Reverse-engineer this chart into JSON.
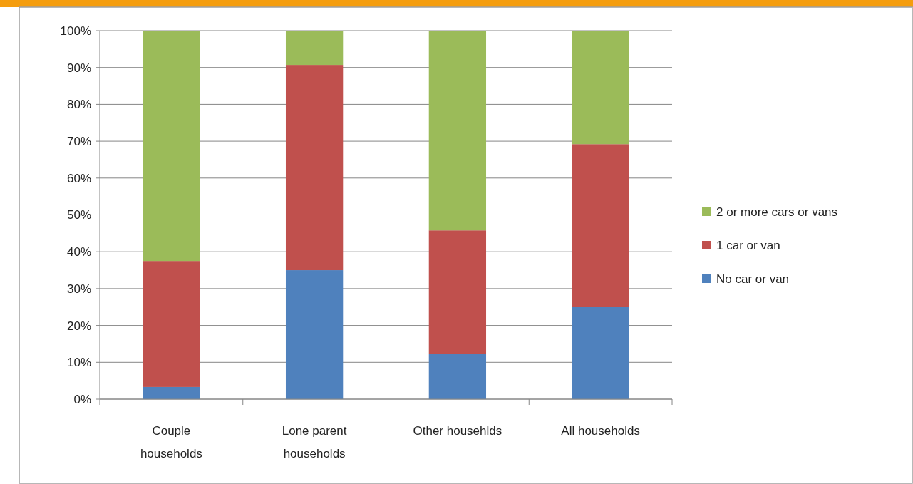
{
  "chart_data": {
    "type": "bar",
    "stacked": true,
    "categories": [
      "Couple households",
      "Lone parent households",
      "Other househlds",
      "All households"
    ],
    "series": [
      {
        "name": "No car or van",
        "color": "#4f81bd",
        "values": [
          3.3,
          35,
          12.2,
          25.1
        ]
      },
      {
        "name": "1 car or van",
        "color": "#c0504d",
        "values": [
          34.2,
          55.7,
          33.6,
          44.1
        ]
      },
      {
        "name": "2 or more cars or vans",
        "color": "#9bbb59",
        "values": [
          62.5,
          9.3,
          54.2,
          30.8
        ]
      }
    ],
    "ylim": [
      0,
      100
    ],
    "yticks": [
      {
        "value": 0,
        "label": "0%"
      },
      {
        "value": 10,
        "label": "10%"
      },
      {
        "value": 20,
        "label": "20%"
      },
      {
        "value": 30,
        "label": "30%"
      },
      {
        "value": 40,
        "label": "40%"
      },
      {
        "value": 50,
        "label": "50%"
      },
      {
        "value": 60,
        "label": "60%"
      },
      {
        "value": 70,
        "label": "70%"
      },
      {
        "value": 80,
        "label": "80%"
      },
      {
        "value": 90,
        "label": "90%"
      },
      {
        "value": 100,
        "label": "100%"
      }
    ],
    "grid": "y",
    "legend": "right"
  }
}
